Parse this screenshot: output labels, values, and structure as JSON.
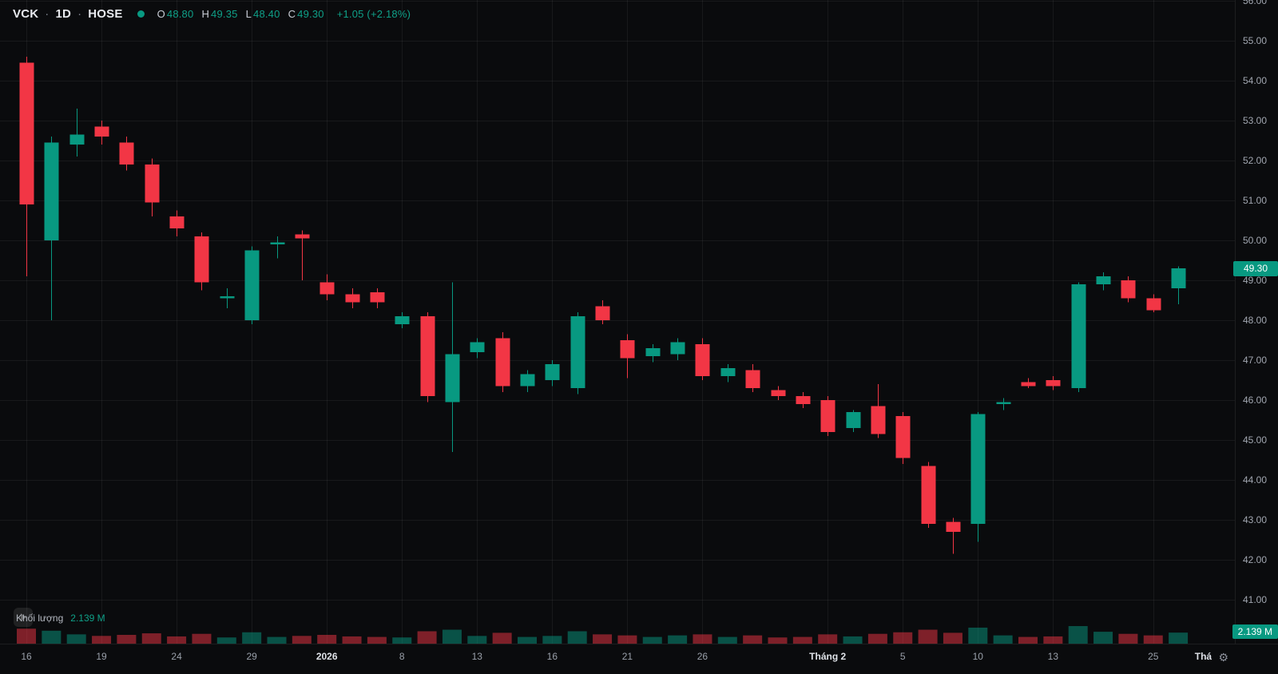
{
  "header": {
    "symbol": "VCK",
    "interval": "1D",
    "exchange": "HOSE",
    "separator": "·",
    "ohlc": [
      {
        "label": "O",
        "value": "48.80"
      },
      {
        "label": "H",
        "value": "49.35"
      },
      {
        "label": "L",
        "value": "48.40"
      },
      {
        "label": "C",
        "value": "49.30"
      }
    ],
    "change": "+1.05 (+2.18%)"
  },
  "colors": {
    "background": "#0a0b0d",
    "up": "#089981",
    "down": "#f23645",
    "accent_text": "#0fa088",
    "axis_text": "#a2a7b1"
  },
  "price_axis": {
    "badge": "49.30"
  },
  "volume_pane": {
    "label": "Khối lượng",
    "value": "2.139 M",
    "badge": "2.139 M"
  },
  "time_axis": {
    "settings_icon": "gear-icon"
  },
  "chart_data": {
    "type": "candlestick",
    "symbol": "VCK",
    "interval": "1D",
    "exchange": "HOSE",
    "ylim": [
      40.78,
      56.02
    ],
    "last_price": 49.3,
    "last_volume_label": "2.139 M",
    "price_ticks": [
      "56.00",
      "55.00",
      "54.00",
      "53.00",
      "52.00",
      "51.00",
      "50.00",
      "49.00",
      "48.00",
      "47.00",
      "46.00",
      "45.00",
      "44.00",
      "43.00",
      "42.00",
      "41.00"
    ],
    "time_ticks": [
      {
        "i": 0,
        "label": "16"
      },
      {
        "i": 3,
        "label": "19"
      },
      {
        "i": 6,
        "label": "24"
      },
      {
        "i": 9,
        "label": "29"
      },
      {
        "i": 12,
        "label": "2026",
        "major": true
      },
      {
        "i": 15,
        "label": "8"
      },
      {
        "i": 18,
        "label": "13"
      },
      {
        "i": 21,
        "label": "16"
      },
      {
        "i": 24,
        "label": "21"
      },
      {
        "i": 27,
        "label": "26"
      },
      {
        "i": 32,
        "label": "Tháng 2",
        "major": true
      },
      {
        "i": 35,
        "label": "5"
      },
      {
        "i": 38,
        "label": "10"
      },
      {
        "i": 41,
        "label": "13"
      },
      {
        "i": 45,
        "label": "25"
      },
      {
        "i": 47,
        "label": "Thá",
        "major": true,
        "no_grid": true
      }
    ],
    "columns": [
      "open",
      "high",
      "low",
      "close",
      "volume_millions"
    ],
    "candles": [
      [
        54.45,
        54.6,
        49.1,
        50.9,
        2.9
      ],
      [
        50.0,
        52.6,
        48.0,
        52.45,
        2.5
      ],
      [
        52.4,
        53.3,
        52.1,
        52.65,
        1.8
      ],
      [
        52.85,
        53.0,
        52.4,
        52.6,
        1.5
      ],
      [
        52.45,
        52.6,
        51.75,
        51.9,
        1.7
      ],
      [
        51.9,
        52.05,
        50.6,
        50.95,
        2.0
      ],
      [
        50.6,
        50.75,
        50.1,
        50.3,
        1.4
      ],
      [
        50.1,
        50.2,
        48.75,
        48.95,
        1.9
      ],
      [
        48.55,
        48.8,
        48.3,
        48.6,
        1.2
      ],
      [
        48.0,
        49.85,
        47.9,
        49.75,
        2.2
      ],
      [
        49.9,
        50.1,
        49.55,
        49.95,
        1.3
      ],
      [
        50.15,
        50.25,
        49.0,
        50.05,
        1.5
      ],
      [
        48.95,
        49.15,
        48.5,
        48.65,
        1.7
      ],
      [
        48.65,
        48.8,
        48.3,
        48.45,
        1.4
      ],
      [
        48.7,
        48.8,
        48.3,
        48.45,
        1.3
      ],
      [
        47.9,
        48.2,
        47.8,
        48.1,
        1.2
      ],
      [
        48.1,
        48.2,
        45.95,
        46.1,
        2.4
      ],
      [
        45.95,
        48.95,
        44.7,
        47.15,
        2.7
      ],
      [
        47.2,
        47.55,
        47.05,
        47.45,
        1.5
      ],
      [
        47.55,
        47.7,
        46.2,
        46.35,
        2.1
      ],
      [
        46.35,
        46.75,
        46.2,
        46.65,
        1.3
      ],
      [
        46.5,
        47.0,
        46.35,
        46.9,
        1.5
      ],
      [
        46.3,
        48.2,
        46.15,
        48.1,
        2.4
      ],
      [
        48.35,
        48.5,
        47.9,
        48.0,
        1.8
      ],
      [
        47.5,
        47.65,
        46.55,
        47.05,
        1.6
      ],
      [
        47.1,
        47.4,
        46.95,
        47.3,
        1.3
      ],
      [
        47.15,
        47.55,
        47.0,
        47.45,
        1.6
      ],
      [
        47.4,
        47.55,
        46.5,
        46.6,
        1.8
      ],
      [
        46.6,
        46.9,
        46.45,
        46.8,
        1.3
      ],
      [
        46.75,
        46.9,
        46.2,
        46.3,
        1.6
      ],
      [
        46.25,
        46.35,
        46.0,
        46.1,
        1.2
      ],
      [
        46.1,
        46.2,
        45.8,
        45.9,
        1.3
      ],
      [
        46.0,
        46.1,
        45.1,
        45.2,
        1.8
      ],
      [
        45.3,
        45.75,
        45.2,
        45.7,
        1.4
      ],
      [
        45.85,
        46.4,
        45.05,
        45.15,
        1.9
      ],
      [
        45.6,
        45.7,
        44.4,
        44.55,
        2.2
      ],
      [
        44.35,
        44.45,
        42.8,
        42.9,
        2.7
      ],
      [
        42.95,
        43.05,
        42.15,
        42.7,
        2.1
      ],
      [
        42.9,
        45.7,
        42.45,
        45.65,
        3.1
      ],
      [
        45.9,
        46.05,
        45.75,
        45.95,
        1.6
      ],
      [
        46.45,
        46.55,
        46.3,
        46.35,
        1.3
      ],
      [
        46.5,
        46.6,
        46.25,
        46.35,
        1.4
      ],
      [
        46.3,
        48.95,
        46.2,
        48.9,
        3.4
      ],
      [
        48.9,
        49.2,
        48.75,
        49.1,
        2.3
      ],
      [
        49.0,
        49.1,
        48.45,
        48.55,
        1.9
      ],
      [
        48.55,
        48.65,
        48.2,
        48.25,
        1.6
      ],
      [
        48.8,
        49.35,
        48.4,
        49.3,
        2.139
      ]
    ]
  }
}
